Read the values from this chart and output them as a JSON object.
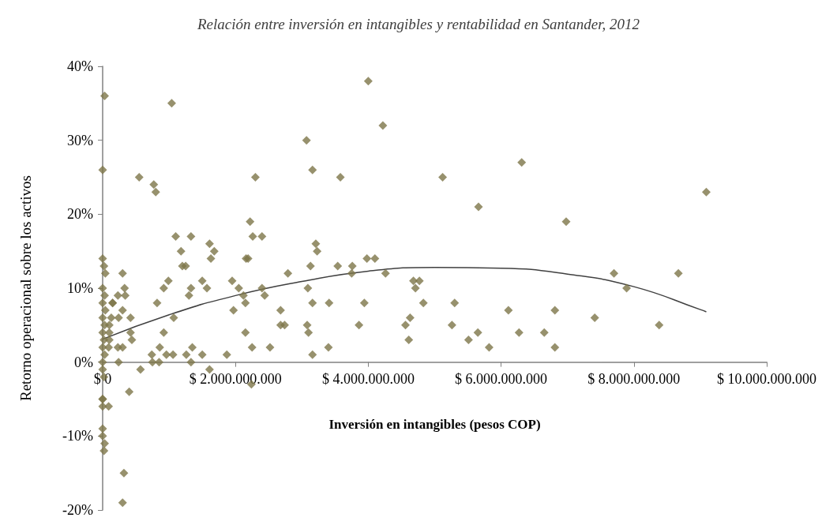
{
  "chart_data": {
    "type": "scatter",
    "title": "Relación entre inversión en intangibles y rentabilidad en Santander, 2012",
    "xlabel": "Inversión en intangibles (pesos COP)",
    "ylabel": "Retorno operacional sobre los activos",
    "xlim": [
      0,
      10000000000.0
    ],
    "ylim": [
      -20,
      40
    ],
    "xticks": [
      {
        "value": 0,
        "label": "$ 0"
      },
      {
        "value": 2000000000.0,
        "label": "$ 2.000.000.000"
      },
      {
        "value": 4000000000.0,
        "label": "$ 4.000.000.000"
      },
      {
        "value": 6000000000.0,
        "label": "$ 6.000.000.000"
      },
      {
        "value": 8000000000.0,
        "label": "$ 8.000.000.000"
      },
      {
        "value": 10000000000.0,
        "label": "$ 10.000.000.000"
      }
    ],
    "yticks": [
      {
        "value": -20,
        "label": "-20%"
      },
      {
        "value": -10,
        "label": "-10%"
      },
      {
        "value": 0,
        "label": "0%"
      },
      {
        "value": 10,
        "label": "10%"
      },
      {
        "value": 20,
        "label": "20%"
      },
      {
        "value": 30,
        "label": "30%"
      },
      {
        "value": 40,
        "label": "40%"
      }
    ],
    "marker": "diamond",
    "series": [
      {
        "color": "#7d7549",
        "x": [
          30000000.0,
          0,
          0,
          20000000.0,
          40000000.0,
          0,
          30000000.0,
          0,
          40000000.0,
          0,
          30000000.0,
          0,
          20000000.0,
          0,
          30000000.0,
          0,
          0,
          20000000.0,
          0,
          0,
          0,
          0,
          30000000.0,
          20000000.0,
          0,
          90000000.0,
          100000000.0,
          100000000.0,
          150000000.0,
          90000000.0,
          130000000.0,
          100000000.0,
          1040000000.0,
          550000000.0,
          770000000.0,
          800000000.0,
          1100000000.0,
          1330000000.0,
          1180000000.0,
          1610000000.0,
          1680000000.0,
          1630000000.0,
          1200000000.0,
          1250000000.0,
          300000000.0,
          990000000.0,
          1500000000.0,
          1950000000.0,
          330000000.0,
          920000000.0,
          1330000000.0,
          1570000000.0,
          230000000.0,
          340000000.0,
          1300000000.0,
          150000000.0,
          820000000.0,
          300000000.0,
          1970000000.0,
          240000000.0,
          420000000.0,
          1070000000.0,
          420000000.0,
          920000000.0,
          440000000.0,
          300000000.0,
          230000000.0,
          860000000.0,
          1350000000.0,
          740000000.0,
          960000000.0,
          1060000000.0,
          1260000000.0,
          1500000000.0,
          1870000000.0,
          240000000.0,
          750000000.0,
          850000000.0,
          1330000000.0,
          570000000.0,
          1610000000.0,
          400000000.0,
          320000000.0,
          300000000.0,
          4000000000.0,
          4220000000.0,
          3070000000.0,
          3160000000.0,
          2300000000.0,
          3580000000.0,
          5120000000.0,
          2220000000.0,
          2260000000.0,
          2400000000.0,
          3210000000.0,
          3230000000.0,
          2160000000.0,
          2190000000.0,
          3980000000.0,
          4100000000.0,
          3130000000.0,
          3540000000.0,
          3760000000.0,
          2790000000.0,
          3750000000.0,
          4260000000.0,
          4680000000.0,
          4770000000.0,
          2050000000.0,
          2400000000.0,
          3090000000.0,
          4710000000.0,
          2120000000.0,
          2440000000.0,
          2150000000.0,
          3160000000.0,
          3410000000.0,
          3940000000.0,
          4830000000.0,
          5300000000.0,
          2680000000.0,
          2680000000.0,
          2740000000.0,
          3080000000.0,
          3860000000.0,
          4560000000.0,
          5260000000.0,
          4630000000.0,
          3100000000.0,
          2150000000.0,
          4610000000.0,
          2250000000.0,
          2520000000.0,
          3400000000.0,
          3160000000.0,
          2240000000.0,
          6310000000.0,
          9090000000.0,
          5660000000.0,
          6980000000.0,
          7700000000.0,
          8670000000.0,
          7890000000.0,
          6110000000.0,
          6810000000.0,
          7410000000.0,
          8380000000.0,
          5650000000.0,
          6270000000.0,
          6650000000.0,
          5510000000.0,
          5820000000.0,
          6810000000.0
        ],
        "values": [
          36,
          26,
          14,
          13,
          12,
          10,
          9,
          8,
          7,
          6,
          5,
          4,
          3,
          2,
          1,
          0,
          -1,
          -2,
          -5,
          -6,
          -9,
          -10,
          -11,
          -12,
          -5,
          -6,
          5,
          4,
          8,
          2,
          6,
          3,
          35,
          25,
          24,
          23,
          17,
          17,
          15,
          16,
          15,
          14,
          13,
          13,
          12,
          11,
          11,
          11,
          10,
          10,
          10,
          10,
          9,
          9,
          9,
          8,
          8,
          7,
          7,
          6,
          6,
          6,
          4,
          4,
          3,
          2,
          2,
          2,
          2,
          1,
          1,
          1,
          1,
          1,
          1,
          0,
          0,
          0,
          0,
          -1,
          -1,
          -4,
          -15,
          -19,
          38,
          32,
          30,
          26,
          25,
          25,
          25,
          19,
          17,
          17,
          16,
          15,
          14,
          14,
          14,
          14,
          13,
          13,
          13,
          12,
          12,
          12,
          11,
          11,
          10,
          10,
          10,
          10,
          9,
          9,
          8,
          8,
          8,
          8,
          8,
          8,
          7,
          5,
          5,
          5,
          5,
          5,
          5,
          6,
          4,
          4,
          3,
          2,
          2,
          2,
          1,
          -3,
          27,
          23,
          21,
          19,
          12,
          12,
          10,
          7,
          7,
          6,
          5,
          4,
          4,
          4,
          3,
          2,
          2
        ]
      },
      {
        "type": "line",
        "color": "#404040",
        "marker": "none",
        "x": [
          0,
          1000000000.0,
          2000000000.0,
          3000000000.0,
          4000000000.0,
          5000000000.0,
          6000000000.0,
          7000000000.0,
          8000000000.0,
          9000000000.0,
          9090000000.0
        ],
        "values": [
          3.1,
          6.4,
          9.0,
          10.9,
          12.3,
          12.8,
          12.7,
          11.9,
          10.2,
          7.1,
          6.8
        ]
      }
    ]
  }
}
